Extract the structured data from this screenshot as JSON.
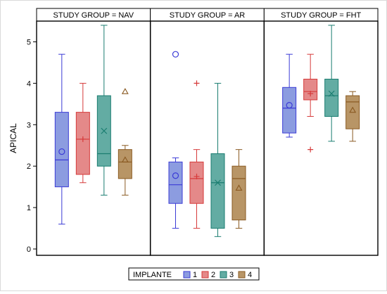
{
  "chart_data": {
    "type": "box",
    "ylabel": "APICAL",
    "ylim": [
      0,
      5.5
    ],
    "yticks": [
      "0",
      "1",
      "2",
      "3",
      "4",
      "5"
    ],
    "panel_prefix": "STUDY GROUP = ",
    "panels": [
      {
        "group": "NAV",
        "boxes": [
          {
            "implante": "1",
            "min": 0.6,
            "q1": 1.5,
            "median": 2.15,
            "q3": 3.3,
            "max": 4.7,
            "mean": 2.35,
            "outliers": []
          },
          {
            "implante": "2",
            "min": 1.6,
            "q1": 1.8,
            "median": 2.65,
            "q3": 3.3,
            "max": 4.0,
            "mean": 2.65,
            "outliers": []
          },
          {
            "implante": "3",
            "min": 1.3,
            "q1": 2.0,
            "median": 2.3,
            "q3": 3.7,
            "max": 5.4,
            "mean": 2.85,
            "outliers": []
          },
          {
            "implante": "4",
            "min": 1.3,
            "q1": 1.7,
            "median": 2.1,
            "q3": 2.4,
            "max": 2.5,
            "mean": 2.15,
            "outliers": [
              3.8
            ]
          }
        ]
      },
      {
        "group": "AR",
        "boxes": [
          {
            "implante": "1",
            "min": 0.5,
            "q1": 1.1,
            "median": 1.55,
            "q3": 2.1,
            "max": 2.2,
            "mean": 1.77,
            "outliers": [
              4.7
            ]
          },
          {
            "implante": "2",
            "min": 0.5,
            "q1": 1.1,
            "median": 1.7,
            "q3": 2.1,
            "max": 2.4,
            "mean": 1.75,
            "outliers": [
              4.0
            ]
          },
          {
            "implante": "3",
            "min": 0.3,
            "q1": 0.5,
            "median": 1.6,
            "q3": 2.3,
            "max": 4.0,
            "mean": 1.6,
            "outliers": []
          },
          {
            "implante": "4",
            "min": 0.5,
            "q1": 0.7,
            "median": 1.7,
            "q3": 2.0,
            "max": 2.4,
            "mean": 1.47,
            "outliers": []
          }
        ]
      },
      {
        "group": "FHT",
        "boxes": [
          {
            "implante": "1",
            "min": 2.7,
            "q1": 2.8,
            "median": 3.4,
            "q3": 3.9,
            "max": 4.7,
            "mean": 3.47,
            "outliers": []
          },
          {
            "implante": "2",
            "min": 3.2,
            "q1": 3.6,
            "median": 3.8,
            "q3": 4.1,
            "max": 4.7,
            "mean": 3.75,
            "outliers": [
              2.4
            ]
          },
          {
            "implante": "3",
            "min": 2.6,
            "q1": 3.2,
            "median": 3.7,
            "q3": 4.1,
            "max": 5.4,
            "mean": 3.75,
            "outliers": []
          },
          {
            "implante": "4",
            "min": 2.6,
            "q1": 2.9,
            "median": 3.55,
            "q3": 3.7,
            "max": 3.8,
            "mean": 3.35,
            "outliers": []
          }
        ]
      }
    ],
    "legend": {
      "title": "IMPLANTE",
      "position": "bottom",
      "items": [
        {
          "label": "1",
          "fill": "#8c9ce0",
          "stroke": "#3b3bd6",
          "mean_marker": "circle"
        },
        {
          "label": "2",
          "fill": "#e48989",
          "stroke": "#d63a3a",
          "mean_marker": "plus"
        },
        {
          "label": "3",
          "fill": "#63aca3",
          "stroke": "#1a7d70",
          "mean_marker": "x"
        },
        {
          "label": "4",
          "fill": "#b89566",
          "stroke": "#8a5a22",
          "mean_marker": "triangle"
        }
      ]
    }
  }
}
